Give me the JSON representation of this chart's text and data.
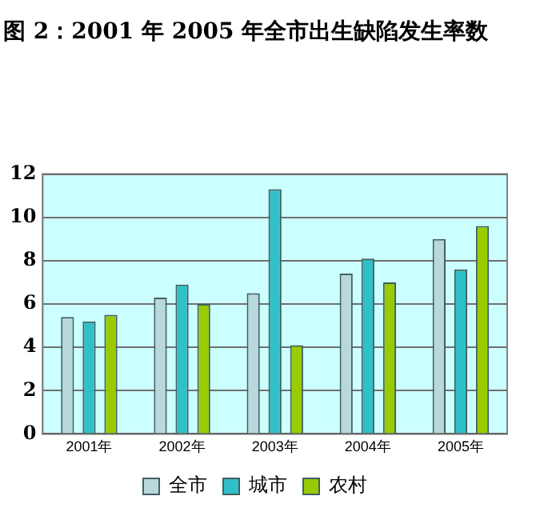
{
  "chart_data": {
    "type": "bar",
    "title": "图 2：2001 年 2005 年全市出生缺陷发生率数",
    "categories": [
      "2001年",
      "2002年",
      "2003年",
      "2004年",
      "2005年"
    ],
    "series": [
      {
        "name": "全市",
        "color": "#b8d8dc",
        "values": [
          5.4,
          6.3,
          6.5,
          7.4,
          9.0
        ]
      },
      {
        "name": "城市",
        "color": "#30c0c8",
        "values": [
          5.2,
          6.9,
          11.3,
          8.1,
          7.6
        ]
      },
      {
        "name": "农村",
        "color": "#99cc00",
        "values": [
          5.5,
          6.0,
          4.1,
          7.0,
          9.6
        ]
      }
    ],
    "ylim": [
      0,
      12
    ],
    "yticks": [
      0,
      2,
      4,
      6,
      8,
      10,
      12
    ],
    "grid": "y",
    "legend": "bottom"
  }
}
